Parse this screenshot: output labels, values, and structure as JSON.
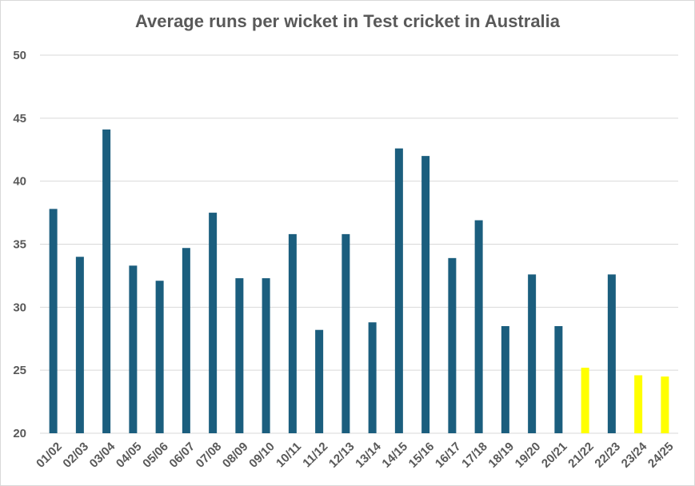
{
  "chart_data": {
    "type": "bar",
    "title": "Average runs per wicket in Test cricket in Australia",
    "xlabel": "",
    "ylabel": "",
    "ylim": [
      20,
      50
    ],
    "yticks": [
      20,
      25,
      30,
      35,
      40,
      45,
      50
    ],
    "grid": true,
    "categories": [
      "01/02",
      "02/03",
      "03/04",
      "04/05",
      "05/06",
      "06/07",
      "07/08",
      "08/09",
      "09/10",
      "10/11",
      "11/12",
      "12/13",
      "13/14",
      "14/15",
      "15/16",
      "16/17",
      "17/18",
      "18/19",
      "19/20",
      "20/21",
      "21/22",
      "22/23",
      "23/24",
      "24/25"
    ],
    "values": [
      37.8,
      34.0,
      44.1,
      33.3,
      32.1,
      34.7,
      37.5,
      32.3,
      32.3,
      35.8,
      28.2,
      35.8,
      28.8,
      42.6,
      42.0,
      33.9,
      36.9,
      28.5,
      32.6,
      28.5,
      25.2,
      32.6,
      24.6,
      24.5
    ],
    "colors": {
      "default": "#1b5e7e",
      "highlight": "#ffff00",
      "grid": "#d9d9d9"
    },
    "highlighted_categories": [
      "21/22",
      "23/24",
      "24/25"
    ]
  }
}
